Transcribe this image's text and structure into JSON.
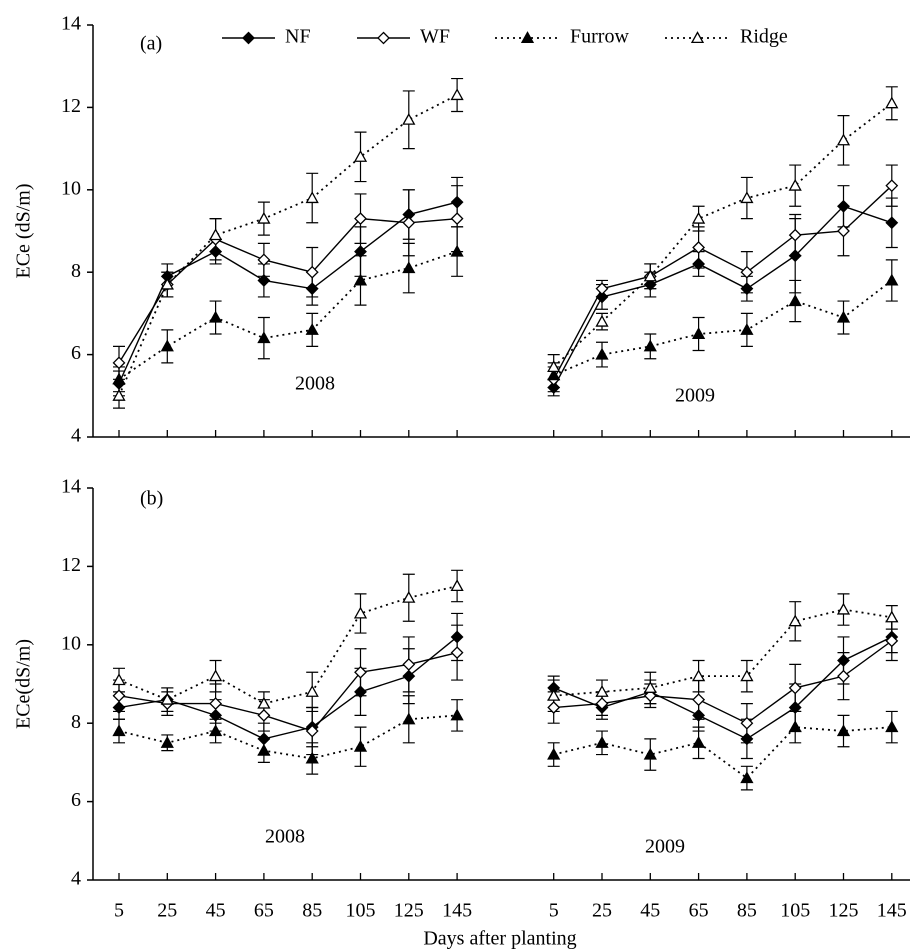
{
  "chart_data": [
    {
      "type": "line",
      "y_label": "ECe (dS/m)",
      "ylim": [
        4,
        14
      ],
      "yticks": [
        4,
        6,
        8,
        10,
        12,
        14
      ],
      "annotations": [
        "(a)",
        "2008",
        "2009"
      ],
      "legend": "top",
      "series": [
        {
          "name": "NF",
          "color": "#000000",
          "marker": "diamond",
          "fill": "filled",
          "dash": "solid",
          "values": [
            5.3,
            7.9,
            8.5,
            7.8,
            7.6,
            8.5,
            9.4,
            9.7,
            null,
            5.2,
            7.4,
            7.7,
            8.2,
            7.6,
            8.4,
            9.6,
            9.2
          ],
          "errors": [
            0.3,
            0.3,
            0.3,
            0.4,
            0.4,
            0.6,
            0.6,
            0.6,
            null,
            0.2,
            0.3,
            0.3,
            0.3,
            0.3,
            0.9,
            0.5,
            0.6
          ]
        },
        {
          "name": "WF",
          "color": "#000000",
          "marker": "diamond",
          "fill": "open",
          "dash": "solid",
          "values": [
            5.8,
            7.7,
            8.8,
            8.3,
            8.0,
            9.3,
            9.2,
            9.3,
            null,
            5.4,
            7.6,
            7.9,
            8.6,
            8.0,
            8.9,
            9.0,
            10.1
          ],
          "errors": [
            0.4,
            0.3,
            0.5,
            0.4,
            0.6,
            0.6,
            0.8,
            0.8,
            null,
            0.3,
            0.2,
            0.3,
            0.5,
            0.5,
            0.5,
            0.6,
            0.5
          ]
        },
        {
          "name": "Furrow",
          "color": "#000000",
          "marker": "triangle",
          "fill": "filled",
          "dash": "dotted",
          "values": [
            5.4,
            6.2,
            6.9,
            6.4,
            6.6,
            7.8,
            8.1,
            8.5,
            null,
            5.5,
            6.0,
            6.2,
            6.5,
            6.6,
            7.3,
            6.9,
            7.8
          ],
          "errors": [
            0.3,
            0.4,
            0.4,
            0.5,
            0.4,
            0.6,
            0.6,
            0.6,
            null,
            0.3,
            0.3,
            0.3,
            0.4,
            0.4,
            0.5,
            0.4,
            0.5
          ]
        },
        {
          "name": "Ridge",
          "color": "#000000",
          "marker": "triangle",
          "fill": "open",
          "dash": "dotted",
          "values": [
            5.0,
            7.7,
            8.9,
            9.3,
            9.8,
            10.8,
            11.7,
            12.3,
            null,
            5.7,
            6.8,
            7.9,
            9.3,
            9.8,
            10.1,
            11.2,
            12.1
          ],
          "errors": [
            0.3,
            0.3,
            0.4,
            0.4,
            0.6,
            0.6,
            0.7,
            0.4,
            null,
            0.3,
            0.2,
            0.3,
            0.3,
            0.5,
            0.5,
            0.6,
            0.4
          ]
        }
      ]
    },
    {
      "type": "line",
      "y_label": "ECe(dS/m)",
      "x_label": "Days after planting",
      "ylim": [
        4,
        14
      ],
      "yticks": [
        4,
        6,
        8,
        10,
        12,
        14
      ],
      "categories": [
        "5",
        "25",
        "45",
        "65",
        "85",
        "105",
        "125",
        "145",
        null,
        "5",
        "25",
        "45",
        "65",
        "85",
        "105",
        "125",
        "145"
      ],
      "annotations": [
        "(b)",
        "2008",
        "2009"
      ],
      "series": [
        {
          "color": "#000000",
          "marker": "diamond",
          "fill": "filled",
          "dash": "solid",
          "values": [
            8.4,
            8.6,
            8.2,
            7.6,
            7.9,
            8.8,
            9.2,
            10.2,
            null,
            8.9,
            8.4,
            8.8,
            8.2,
            7.6,
            8.4,
            9.6,
            10.2
          ],
          "errors": [
            0.3,
            0.3,
            0.4,
            0.4,
            0.5,
            0.6,
            0.7,
            0.6,
            null,
            0.3,
            0.3,
            0.3,
            0.4,
            0.5,
            0.6,
            0.6,
            0.4
          ]
        },
        {
          "color": "#000000",
          "marker": "diamond",
          "fill": "open",
          "dash": "solid",
          "values": [
            8.7,
            8.5,
            8.5,
            8.2,
            7.8,
            9.3,
            9.5,
            9.8,
            null,
            8.4,
            8.5,
            8.7,
            8.6,
            8.0,
            8.9,
            9.2,
            10.1
          ],
          "errors": [
            0.4,
            0.3,
            0.5,
            0.4,
            0.6,
            0.6,
            0.7,
            0.7,
            null,
            0.4,
            0.3,
            0.3,
            0.5,
            0.5,
            0.6,
            0.6,
            0.5
          ]
        },
        {
          "color": "#000000",
          "marker": "triangle",
          "fill": "filled",
          "dash": "dotted",
          "values": [
            7.8,
            7.5,
            7.8,
            7.3,
            7.1,
            7.4,
            8.1,
            8.2,
            null,
            7.2,
            7.5,
            7.2,
            7.5,
            6.6,
            7.9,
            7.8,
            7.9
          ],
          "errors": [
            0.3,
            0.2,
            0.3,
            0.3,
            0.4,
            0.5,
            0.6,
            0.4,
            null,
            0.3,
            0.3,
            0.4,
            0.4,
            0.3,
            0.4,
            0.4,
            0.4
          ]
        },
        {
          "color": "#000000",
          "marker": "triangle",
          "fill": "open",
          "dash": "dotted",
          "values": [
            9.1,
            8.6,
            9.2,
            8.5,
            8.8,
            10.8,
            11.2,
            11.5,
            null,
            8.7,
            8.8,
            8.9,
            9.2,
            9.2,
            10.6,
            10.9,
            10.7
          ],
          "errors": [
            0.3,
            0.3,
            0.4,
            0.3,
            0.5,
            0.5,
            0.6,
            0.4,
            null,
            0.4,
            0.3,
            0.4,
            0.4,
            0.4,
            0.5,
            0.4,
            0.3
          ]
        }
      ]
    }
  ]
}
